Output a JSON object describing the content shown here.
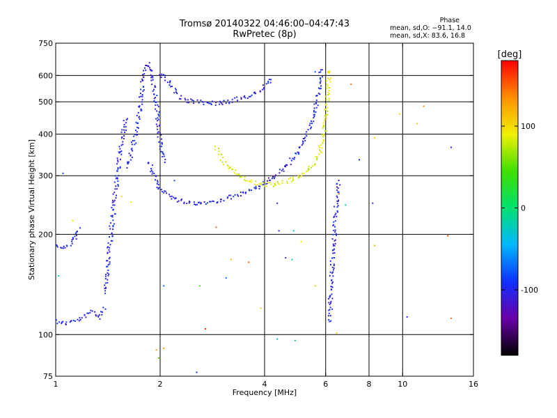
{
  "chart_data": {
    "type": "scatter",
    "title": "Tromsø 20140322 04:46:00–04:47:43",
    "subtitle": "RwPretec (8p)",
    "xlabel": "Frequency [MHz]",
    "ylabel": "Stationary phase Virtual Height [km]",
    "xscale": "log",
    "yscale": "log",
    "xlim": [
      1,
      16
    ],
    "ylim": [
      75,
      750
    ],
    "xticks": [
      1,
      2,
      4,
      6,
      8,
      10,
      16
    ],
    "yticks": [
      75,
      100,
      200,
      300,
      400,
      500,
      600,
      750
    ],
    "xgrid": [
      2,
      4,
      6,
      8,
      10
    ],
    "ygrid": [
      100,
      200,
      300,
      400,
      500,
      600
    ],
    "phase_stats": {
      "heading": "Phase",
      "line_o": "mean, sd,O: −91.1, 14.0",
      "line_x": "mean, sd,X:  83.6, 16.8"
    },
    "colorbar": {
      "label": "[deg]",
      "range": [
        -180,
        180
      ],
      "ticks": [
        100,
        0,
        -100
      ],
      "colors": [
        "#000000",
        "#6a00a8",
        "#1030ff",
        "#00b8ff",
        "#00e070",
        "#40e000",
        "#f0f000",
        "#ff9000",
        "#ff0000"
      ]
    },
    "traces": [
      {
        "name": "",
        "phase": -100,
        "points": [
          [
            1.0,
            110
          ],
          [
            1.05,
            108
          ],
          [
            1.1,
            109
          ],
          [
            1.17,
            111
          ],
          [
            1.22,
            113
          ],
          [
            1.26,
            118
          ],
          [
            1.29,
            115
          ],
          [
            1.33,
            113
          ],
          [
            1.36,
            117
          ],
          [
            1.4,
            121
          ]
        ]
      },
      {
        "name": "",
        "phase": -100,
        "points": [
          [
            1.0,
            186
          ],
          [
            1.05,
            182
          ],
          [
            1.1,
            185
          ],
          [
            1.14,
            195
          ],
          [
            1.17,
            210
          ]
        ]
      },
      {
        "name": "",
        "phase": -100,
        "points": [
          [
            1.38,
            133
          ],
          [
            1.4,
            150
          ],
          [
            1.43,
            185
          ],
          [
            1.46,
            225
          ],
          [
            1.49,
            270
          ],
          [
            1.52,
            330
          ],
          [
            1.55,
            380
          ],
          [
            1.58,
            420
          ],
          [
            1.6,
            450
          ]
        ]
      },
      {
        "name": "",
        "phase": -100,
        "points": [
          [
            1.6,
            320
          ],
          [
            1.65,
            350
          ],
          [
            1.7,
            400
          ],
          [
            1.75,
            480
          ],
          [
            1.78,
            560
          ],
          [
            1.8,
            610
          ],
          [
            1.83,
            640
          ],
          [
            1.85,
            650
          ],
          [
            1.88,
            620
          ],
          [
            1.92,
            560
          ],
          [
            1.96,
            480
          ],
          [
            2.0,
            380
          ],
          [
            2.05,
            330
          ]
        ]
      },
      {
        "name": "",
        "phase": -100,
        "points": [
          [
            1.85,
            330
          ],
          [
            1.9,
            310
          ],
          [
            1.95,
            290
          ],
          [
            2.0,
            275
          ],
          [
            2.1,
            262
          ],
          [
            2.25,
            253
          ],
          [
            2.5,
            248
          ],
          [
            2.8,
            250
          ],
          [
            3.1,
            256
          ],
          [
            3.4,
            263
          ],
          [
            3.7,
            272
          ],
          [
            4.0,
            285
          ],
          [
            4.3,
            298
          ],
          [
            4.6,
            318
          ],
          [
            4.9,
            345
          ],
          [
            5.2,
            380
          ],
          [
            5.4,
            420
          ],
          [
            5.55,
            460
          ],
          [
            5.7,
            520
          ],
          [
            5.8,
            580
          ],
          [
            5.85,
            630
          ]
        ]
      },
      {
        "name": "",
        "phase": -100,
        "points": [
          [
            2.0,
            610
          ],
          [
            2.1,
            580
          ],
          [
            2.2,
            540
          ],
          [
            2.35,
            505
          ],
          [
            2.6,
            498
          ],
          [
            2.9,
            495
          ],
          [
            3.2,
            502
          ],
          [
            3.5,
            515
          ],
          [
            3.8,
            535
          ],
          [
            4.0,
            555
          ],
          [
            4.2,
            585
          ]
        ]
      },
      {
        "name": "",
        "phase": -100,
        "points": [
          [
            6.2,
            110
          ],
          [
            6.2,
            130
          ],
          [
            6.25,
            150
          ],
          [
            6.3,
            175
          ],
          [
            6.35,
            195
          ],
          [
            6.4,
            220
          ],
          [
            6.45,
            245
          ],
          [
            6.5,
            270
          ],
          [
            6.55,
            290
          ]
        ]
      },
      {
        "name": "",
        "phase": 85,
        "points": [
          [
            2.9,
            365
          ],
          [
            3.0,
            340
          ],
          [
            3.15,
            320
          ],
          [
            3.3,
            305
          ],
          [
            3.5,
            294
          ],
          [
            3.7,
            287
          ],
          [
            3.9,
            283
          ],
          [
            4.1,
            282
          ],
          [
            4.3,
            283
          ],
          [
            4.6,
            288
          ],
          [
            4.9,
            295
          ],
          [
            5.2,
            305
          ],
          [
            5.5,
            322
          ],
          [
            5.75,
            350
          ],
          [
            5.9,
            390
          ],
          [
            6.0,
            440
          ],
          [
            6.05,
            500
          ],
          [
            6.1,
            570
          ],
          [
            6.15,
            630
          ]
        ]
      }
    ],
    "scatter_points": [
      {
        "x": 7.1,
        "y": 565,
        "phase": 150
      },
      {
        "x": 5.6,
        "y": 615,
        "phase": -80
      },
      {
        "x": 4.35,
        "y": 248,
        "phase": -110
      },
      {
        "x": 4.4,
        "y": 205,
        "phase": -110
      },
      {
        "x": 4.85,
        "y": 205,
        "phase": -30
      },
      {
        "x": 6.55,
        "y": 265,
        "phase": 150
      },
      {
        "x": 6.85,
        "y": 245,
        "phase": -20
      },
      {
        "x": 8.2,
        "y": 248,
        "phase": -110
      },
      {
        "x": 9.8,
        "y": 460,
        "phase": 100
      },
      {
        "x": 11.0,
        "y": 430,
        "phase": 110
      },
      {
        "x": 11.5,
        "y": 485,
        "phase": 140
      },
      {
        "x": 13.8,
        "y": 365,
        "phase": -110
      },
      {
        "x": 13.5,
        "y": 198,
        "phase": 160
      },
      {
        "x": 13.8,
        "y": 112,
        "phase": 150
      },
      {
        "x": 10.3,
        "y": 113,
        "phase": -110
      },
      {
        "x": 8.3,
        "y": 390,
        "phase": 100
      },
      {
        "x": 8.3,
        "y": 185,
        "phase": 120
      },
      {
        "x": 3.2,
        "y": 168,
        "phase": 120
      },
      {
        "x": 3.6,
        "y": 165,
        "phase": 150
      },
      {
        "x": 3.1,
        "y": 148,
        "phase": -70
      },
      {
        "x": 2.9,
        "y": 210,
        "phase": 150
      },
      {
        "x": 2.7,
        "y": 104,
        "phase": 170
      },
      {
        "x": 2.6,
        "y": 140,
        "phase": 40
      },
      {
        "x": 2.55,
        "y": 77,
        "phase": -90
      },
      {
        "x": 1.95,
        "y": 90,
        "phase": 130
      },
      {
        "x": 2.05,
        "y": 91,
        "phase": 130
      },
      {
        "x": 1.98,
        "y": 85,
        "phase": 50
      },
      {
        "x": 4.9,
        "y": 96,
        "phase": 0
      },
      {
        "x": 4.35,
        "y": 97,
        "phase": -30
      },
      {
        "x": 4.6,
        "y": 170,
        "phase": -110
      },
      {
        "x": 4.8,
        "y": 168,
        "phase": -30
      },
      {
        "x": 5.6,
        "y": 140,
        "phase": 110
      },
      {
        "x": 6.45,
        "y": 101,
        "phase": 110
      },
      {
        "x": 1.55,
        "y": 260,
        "phase": 100
      },
      {
        "x": 1.65,
        "y": 250,
        "phase": 90
      },
      {
        "x": 1.12,
        "y": 220,
        "phase": 100
      },
      {
        "x": 1.05,
        "y": 305,
        "phase": -90
      },
      {
        "x": 2.05,
        "y": 140,
        "phase": -70
      },
      {
        "x": 2.2,
        "y": 290,
        "phase": -80
      },
      {
        "x": 3.9,
        "y": 120,
        "phase": 110
      },
      {
        "x": 7.5,
        "y": 335,
        "phase": -90
      },
      {
        "x": 5.1,
        "y": 190,
        "phase": 90
      },
      {
        "x": 1.02,
        "y": 150,
        "phase": -20
      }
    ]
  }
}
